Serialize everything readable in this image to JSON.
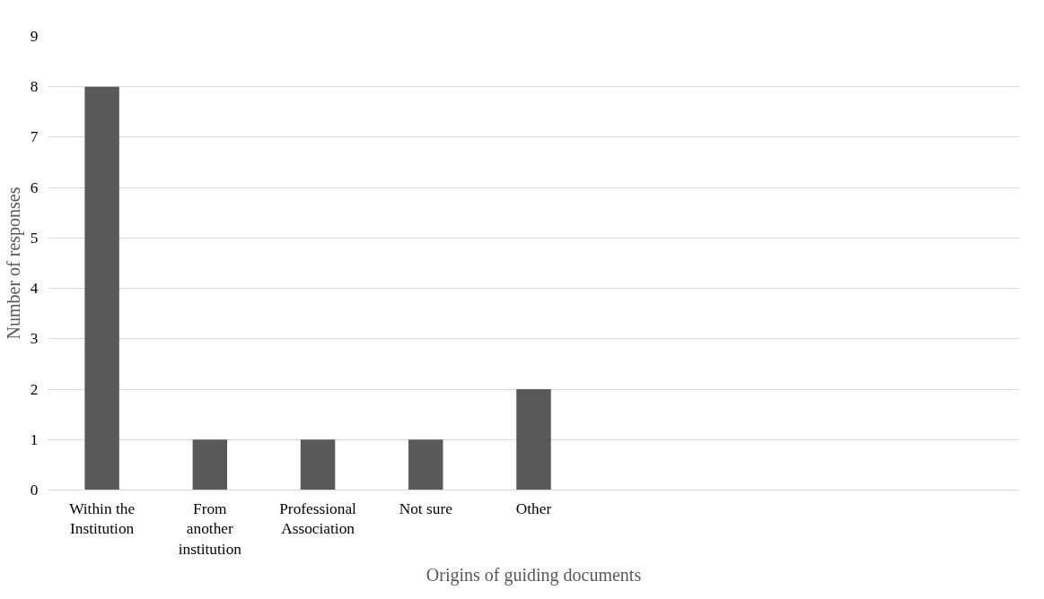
{
  "chart_data": {
    "type": "bar",
    "xlabel": "Origins of guiding documents",
    "ylabel": "Number of responses",
    "categories": [
      "Within the\nInstitution",
      "From\nanother\ninstitution",
      "Professional\nAssociation",
      "Not sure",
      "Other",
      null,
      null,
      null,
      null
    ],
    "values": [
      8,
      1,
      1,
      1,
      2,
      null,
      null,
      null,
      null
    ],
    "color": "#595959",
    "ylim": [
      0,
      9
    ],
    "yticks": [
      0,
      1,
      2,
      3,
      4,
      5,
      6,
      7,
      8,
      9
    ],
    "grid": "y"
  }
}
